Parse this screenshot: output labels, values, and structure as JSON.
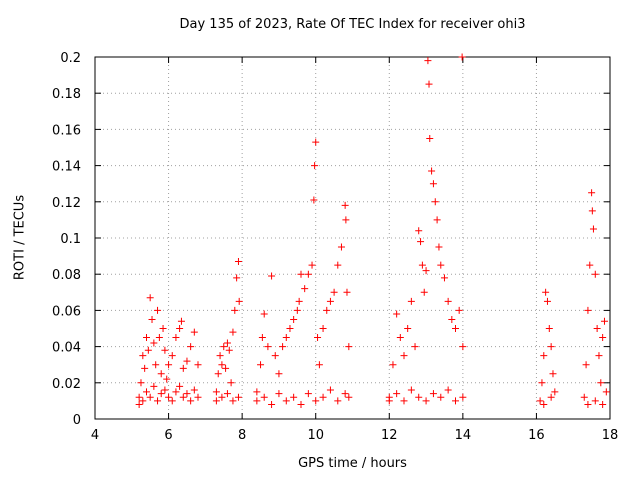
{
  "chart_data": {
    "type": "scatter",
    "title": "Day 135 of 2023, Rate Of TEC Index for receiver ohi3",
    "xlabel": "GPS time / hours",
    "ylabel": "ROTI / TECUs",
    "xlim": [
      4,
      18
    ],
    "ylim": [
      0,
      0.2
    ],
    "xticks": [
      4,
      6,
      8,
      10,
      12,
      14,
      16,
      18
    ],
    "yticks": [
      0,
      0.02,
      0.04,
      0.06,
      0.08,
      0.1,
      0.12,
      0.14,
      0.16,
      0.18,
      0.2
    ],
    "xtick_labels": [
      "4",
      "6",
      "8",
      "10",
      "12",
      "14",
      "16",
      "18"
    ],
    "ytick_labels": [
      "0",
      "0.02",
      "0.04",
      "0.06",
      "0.08",
      "0.1",
      "0.12",
      "0.14",
      "0.16",
      "0.18",
      "0.2"
    ],
    "grid": true,
    "marker": "+",
    "color": "#ff0000",
    "series": [
      {
        "points": [
          [
            5.2,
            0.012
          ],
          [
            5.25,
            0.02
          ],
          [
            5.3,
            0.035
          ],
          [
            5.35,
            0.028
          ],
          [
            5.4,
            0.045
          ],
          [
            5.45,
            0.038
          ],
          [
            5.5,
            0.067
          ],
          [
            5.55,
            0.055
          ],
          [
            5.6,
            0.042
          ],
          [
            5.65,
            0.03
          ],
          [
            5.7,
            0.06
          ],
          [
            5.75,
            0.045
          ],
          [
            5.8,
            0.025
          ],
          [
            5.85,
            0.05
          ],
          [
            5.9,
            0.038
          ],
          [
            5.95,
            0.022
          ],
          [
            6.0,
            0.03
          ],
          [
            6.1,
            0.035
          ],
          [
            6.2,
            0.045
          ],
          [
            6.3,
            0.05
          ],
          [
            6.35,
            0.054
          ],
          [
            6.4,
            0.028
          ],
          [
            6.5,
            0.032
          ],
          [
            6.6,
            0.04
          ],
          [
            6.7,
            0.048
          ],
          [
            6.8,
            0.03
          ],
          [
            5.2,
            0.008
          ],
          [
            5.3,
            0.01
          ],
          [
            5.4,
            0.015
          ],
          [
            5.5,
            0.012
          ],
          [
            5.6,
            0.018
          ],
          [
            5.7,
            0.01
          ],
          [
            5.8,
            0.014
          ],
          [
            5.9,
            0.016
          ],
          [
            6.0,
            0.012
          ],
          [
            6.1,
            0.01
          ],
          [
            6.2,
            0.015
          ],
          [
            6.3,
            0.018
          ],
          [
            6.4,
            0.012
          ],
          [
            6.5,
            0.014
          ],
          [
            6.6,
            0.01
          ],
          [
            6.7,
            0.016
          ],
          [
            6.8,
            0.012
          ],
          [
            7.3,
            0.015
          ],
          [
            7.35,
            0.025
          ],
          [
            7.4,
            0.035
          ],
          [
            7.45,
            0.03
          ],
          [
            7.5,
            0.04
          ],
          [
            7.55,
            0.028
          ],
          [
            7.6,
            0.042
          ],
          [
            7.65,
            0.038
          ],
          [
            7.7,
            0.02
          ],
          [
            7.75,
            0.048
          ],
          [
            7.8,
            0.06
          ],
          [
            7.85,
            0.078
          ],
          [
            7.9,
            0.087
          ],
          [
            7.92,
            0.065
          ],
          [
            7.3,
            0.01
          ],
          [
            7.45,
            0.012
          ],
          [
            7.6,
            0.014
          ],
          [
            7.75,
            0.01
          ],
          [
            7.9,
            0.012
          ],
          [
            8.4,
            0.015
          ],
          [
            8.5,
            0.03
          ],
          [
            8.55,
            0.045
          ],
          [
            8.6,
            0.058
          ],
          [
            8.7,
            0.04
          ],
          [
            8.8,
            0.079
          ],
          [
            8.9,
            0.035
          ],
          [
            9.0,
            0.025
          ],
          [
            9.1,
            0.04
          ],
          [
            9.2,
            0.045
          ],
          [
            9.3,
            0.05
          ],
          [
            9.4,
            0.055
          ],
          [
            9.5,
            0.06
          ],
          [
            9.55,
            0.065
          ],
          [
            9.6,
            0.08
          ],
          [
            9.7,
            0.072
          ],
          [
            9.8,
            0.08
          ],
          [
            9.9,
            0.085
          ],
          [
            9.95,
            0.121
          ],
          [
            9.97,
            0.14
          ],
          [
            10.0,
            0.153
          ],
          [
            10.05,
            0.045
          ],
          [
            10.1,
            0.03
          ],
          [
            10.2,
            0.05
          ],
          [
            10.3,
            0.06
          ],
          [
            10.4,
            0.065
          ],
          [
            10.5,
            0.07
          ],
          [
            10.6,
            0.085
          ],
          [
            10.7,
            0.095
          ],
          [
            10.8,
            0.118
          ],
          [
            10.82,
            0.11
          ],
          [
            10.85,
            0.07
          ],
          [
            10.9,
            0.04
          ],
          [
            8.4,
            0.01
          ],
          [
            8.6,
            0.012
          ],
          [
            8.8,
            0.008
          ],
          [
            9.0,
            0.014
          ],
          [
            9.2,
            0.01
          ],
          [
            9.4,
            0.012
          ],
          [
            9.6,
            0.008
          ],
          [
            9.8,
            0.014
          ],
          [
            10.0,
            0.01
          ],
          [
            10.2,
            0.012
          ],
          [
            10.4,
            0.016
          ],
          [
            10.6,
            0.01
          ],
          [
            10.8,
            0.014
          ],
          [
            10.9,
            0.012
          ],
          [
            12.0,
            0.012
          ],
          [
            12.1,
            0.03
          ],
          [
            12.2,
            0.058
          ],
          [
            12.3,
            0.045
          ],
          [
            12.4,
            0.035
          ],
          [
            12.5,
            0.05
          ],
          [
            12.6,
            0.065
          ],
          [
            12.7,
            0.04
          ],
          [
            12.8,
            0.104
          ],
          [
            12.85,
            0.098
          ],
          [
            12.9,
            0.085
          ],
          [
            12.95,
            0.07
          ],
          [
            13.0,
            0.082
          ],
          [
            13.05,
            0.198
          ],
          [
            13.08,
            0.185
          ],
          [
            13.1,
            0.155
          ],
          [
            13.15,
            0.137
          ],
          [
            13.2,
            0.13
          ],
          [
            13.25,
            0.12
          ],
          [
            13.3,
            0.11
          ],
          [
            13.35,
            0.095
          ],
          [
            13.4,
            0.085
          ],
          [
            13.5,
            0.078
          ],
          [
            13.6,
            0.065
          ],
          [
            13.7,
            0.055
          ],
          [
            13.8,
            0.05
          ],
          [
            13.9,
            0.06
          ],
          [
            13.98,
            0.2
          ],
          [
            14.0,
            0.04
          ],
          [
            12.0,
            0.01
          ],
          [
            12.2,
            0.014
          ],
          [
            12.4,
            0.01
          ],
          [
            12.6,
            0.016
          ],
          [
            12.8,
            0.012
          ],
          [
            13.0,
            0.01
          ],
          [
            13.2,
            0.014
          ],
          [
            13.4,
            0.012
          ],
          [
            13.6,
            0.016
          ],
          [
            13.8,
            0.01
          ],
          [
            14.0,
            0.012
          ],
          [
            16.1,
            0.01
          ],
          [
            16.15,
            0.02
          ],
          [
            16.2,
            0.035
          ],
          [
            16.25,
            0.07
          ],
          [
            16.3,
            0.065
          ],
          [
            16.35,
            0.05
          ],
          [
            16.4,
            0.04
          ],
          [
            16.45,
            0.025
          ],
          [
            16.5,
            0.015
          ],
          [
            16.2,
            0.008
          ],
          [
            16.4,
            0.012
          ],
          [
            17.3,
            0.012
          ],
          [
            17.35,
            0.03
          ],
          [
            17.4,
            0.06
          ],
          [
            17.45,
            0.085
          ],
          [
            17.5,
            0.125
          ],
          [
            17.52,
            0.115
          ],
          [
            17.55,
            0.105
          ],
          [
            17.6,
            0.08
          ],
          [
            17.65,
            0.05
          ],
          [
            17.7,
            0.035
          ],
          [
            17.75,
            0.02
          ],
          [
            17.8,
            0.045
          ],
          [
            17.85,
            0.054
          ],
          [
            17.9,
            0.015
          ],
          [
            17.4,
            0.008
          ],
          [
            17.6,
            0.01
          ],
          [
            17.8,
            0.008
          ]
        ]
      }
    ]
  }
}
